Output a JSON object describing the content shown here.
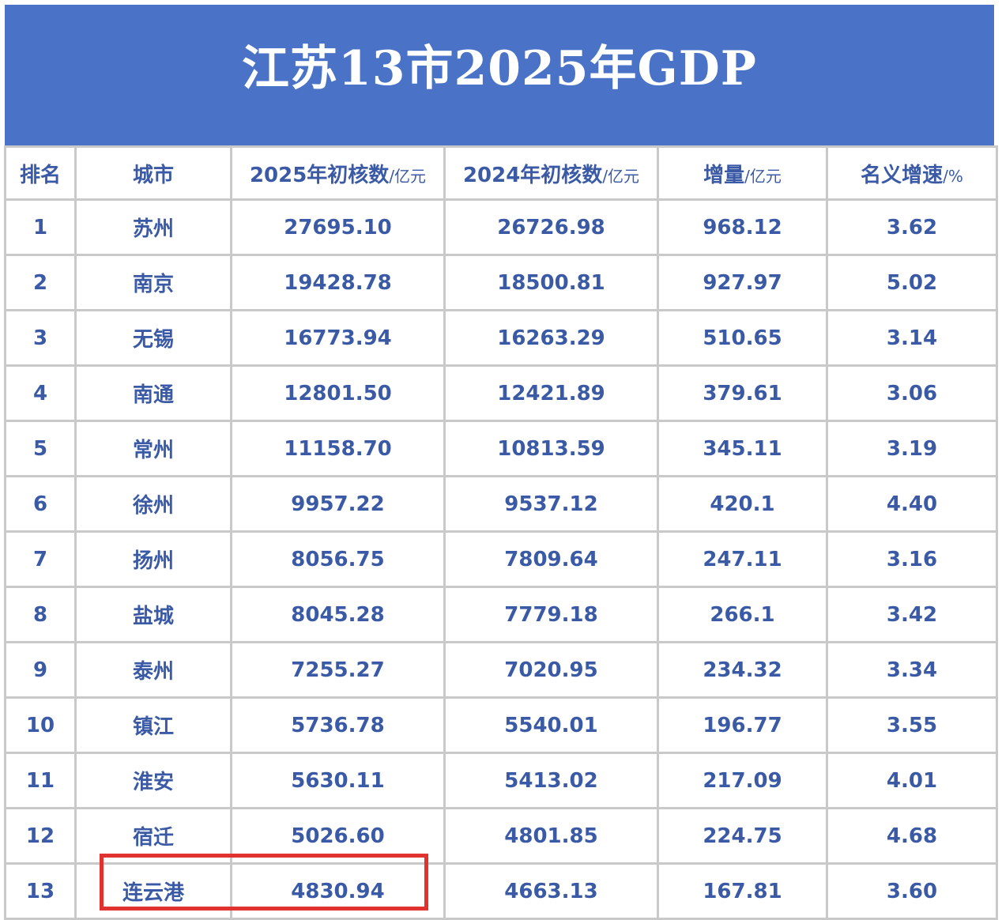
{
  "title": "江苏13市2025年GDP",
  "headers": [
    {
      "main": "排名",
      "unit": ""
    },
    {
      "main": "城市",
      "unit": ""
    },
    {
      "main": "2025年初核数",
      "unit": "/亿元"
    },
    {
      "main": "2024年初核数",
      "unit": "/亿元"
    },
    {
      "main": "增量",
      "unit": "/亿元"
    },
    {
      "main": "名义增速",
      "unit": "/%"
    }
  ],
  "rows": [
    [
      "1",
      "苏州",
      "27695.10",
      "26726.98",
      "968.12",
      "3.62"
    ],
    [
      "2",
      "南京",
      "19428.78",
      "18500.81",
      "927.97",
      "5.02"
    ],
    [
      "3",
      "无锡",
      "16773.94",
      "16263.29",
      "510.65",
      "3.14"
    ],
    [
      "4",
      "南通",
      "12801.50",
      "12421.89",
      "379.61",
      "3.06"
    ],
    [
      "5",
      "常州",
      "11158.70",
      "10813.59",
      "345.11",
      "3.19"
    ],
    [
      "6",
      "徐州",
      "9957.22",
      "9537.12",
      "420.1",
      "4.40"
    ],
    [
      "7",
      "扬州",
      "8056.75",
      "7809.64",
      "247.11",
      "3.16"
    ],
    [
      "8",
      "盐城",
      "8045.28",
      "7779.18",
      "266.1",
      "3.42"
    ],
    [
      "9",
      "泰州",
      "7255.27",
      "7020.95",
      "234.32",
      "3.34"
    ],
    [
      "10",
      "镇江",
      "5736.78",
      "5540.01",
      "196.77",
      "3.55"
    ],
    [
      "11",
      "淮安",
      "5630.11",
      "5413.02",
      "217.09",
      "4.01"
    ],
    [
      "12",
      "宿迁",
      "5026.60",
      "4801.85",
      "224.75",
      "4.68"
    ],
    [
      "13",
      "连云港",
      "4830.94",
      "4663.13",
      "167.81",
      "3.60"
    ]
  ],
  "colors": {
    "banner": "#4a73c8",
    "text": "#3b5aa6",
    "highlight": "#e0322e",
    "grid": "#c9c9c9"
  }
}
